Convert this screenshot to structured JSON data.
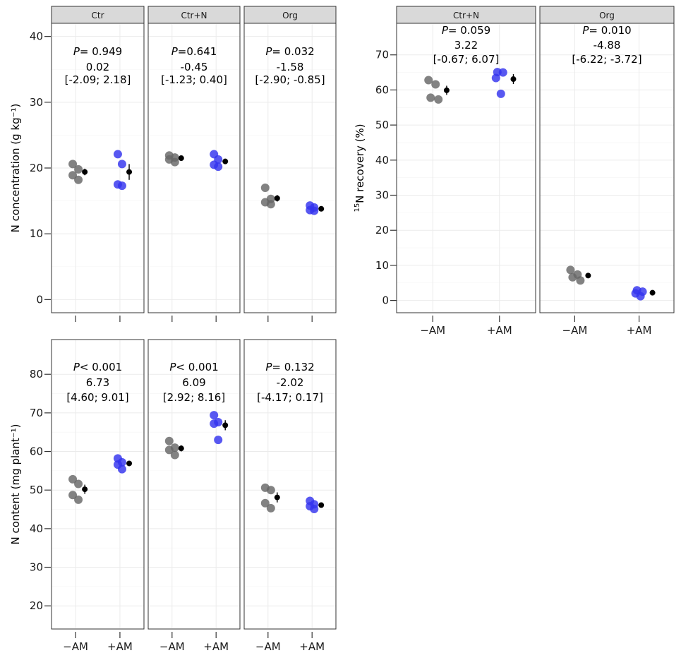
{
  "colors": {
    "minus_am": "#666666",
    "plus_am": "#3333ee",
    "mean": "#000000"
  },
  "chart_data": [
    {
      "type": "scatter",
      "ylabel": "N concentration (g kg⁻¹)",
      "ylim": [
        -2,
        42
      ],
      "yticks": [
        0,
        10,
        20,
        30,
        40
      ],
      "x_categories": [
        "−AM",
        "+AM"
      ],
      "x_ticklabels_shown": false,
      "panels": [
        {
          "strip": "Ctr",
          "annotation": {
            "p_label": "P",
            "p_text": "= 0.949",
            "estimate": "0.02",
            "ci": "[-2.09; 2.18]"
          },
          "points": {
            "minus_am": [
              20.6,
              19.8,
              18.9,
              18.2
            ],
            "plus_am": [
              22.1,
              20.6,
              17.5,
              17.3
            ]
          },
          "means": {
            "minus_am": {
              "mean": 19.4,
              "se": 0.5
            },
            "plus_am": {
              "mean": 19.4,
              "se": 1.2
            }
          }
        },
        {
          "strip": "Ctr+N",
          "annotation": {
            "p_label": "P",
            "p_text": "=0.641",
            "estimate": "-0.45",
            "ci": "[-1.23; 0.40]"
          },
          "points": {
            "minus_am": [
              21.9,
              21.6,
              21.3,
              20.9
            ],
            "plus_am": [
              22.1,
              21.3,
              20.5,
              20.2
            ]
          },
          "means": {
            "minus_am": {
              "mean": 21.5,
              "se": 0.2
            },
            "plus_am": {
              "mean": 21.0,
              "se": 0.4
            }
          }
        },
        {
          "strip": "Org",
          "annotation": {
            "p_label": "P",
            "p_text": "= 0.032",
            "estimate": "-1.58",
            "ci": "[-2.90; -0.85]"
          },
          "points": {
            "minus_am": [
              17.0,
              15.3,
              14.8,
              14.5
            ],
            "plus_am": [
              14.3,
              14.0,
              13.6,
              13.5
            ]
          },
          "means": {
            "minus_am": {
              "mean": 15.4,
              "se": 0.5
            },
            "plus_am": {
              "mean": 13.8,
              "se": 0.2
            }
          }
        }
      ]
    },
    {
      "type": "scatter",
      "ylabel": "N content (mg  plant⁻¹)",
      "ylim": [
        14,
        89
      ],
      "yticks": [
        20,
        30,
        40,
        50,
        60,
        70,
        80
      ],
      "x_categories": [
        "−AM",
        "+AM"
      ],
      "panels": [
        {
          "strip": "",
          "annotation": {
            "p_label": "P",
            "p_text": "< 0.001",
            "estimate": "6.73",
            "ci": "[4.60; 9.01]"
          },
          "points": {
            "minus_am": [
              52.8,
              51.6,
              48.7,
              47.5
            ],
            "plus_am": [
              58.2,
              57.2,
              56.6,
              55.4
            ]
          },
          "means": {
            "minus_am": {
              "mean": 50.2,
              "se": 1.2
            },
            "plus_am": {
              "mean": 56.9,
              "se": 0.6
            }
          }
        },
        {
          "strip": "",
          "annotation": {
            "p_label": "P",
            "p_text": "< 0.001",
            "estimate": "6.09",
            "ci": "[2.92; 8.16]"
          },
          "points": {
            "minus_am": [
              62.7,
              61.0,
              60.4,
              59.1
            ],
            "plus_am": [
              69.4,
              67.6,
              67.2,
              63.0
            ]
          },
          "means": {
            "minus_am": {
              "mean": 60.8,
              "se": 0.8
            },
            "plus_am": {
              "mean": 66.8,
              "se": 1.3
            }
          }
        },
        {
          "strip": "",
          "annotation": {
            "p_label": "P",
            "p_text": "= 0.132",
            "estimate": "-2.02",
            "ci": "[-4.17; 0.17]"
          },
          "points": {
            "minus_am": [
              50.6,
              50.0,
              46.6,
              45.3
            ],
            "plus_am": [
              47.2,
              46.3,
              45.8,
              45.1
            ]
          },
          "means": {
            "minus_am": {
              "mean": 48.1,
              "se": 1.3
            },
            "plus_am": {
              "mean": 46.1,
              "se": 0.5
            }
          }
        }
      ]
    },
    {
      "type": "scatter",
      "ylabel_sup": "15",
      "ylabel": "N recovery (%)",
      "ylim": [
        -3.5,
        79
      ],
      "yticks": [
        0,
        10,
        20,
        30,
        40,
        50,
        60,
        70
      ],
      "x_categories": [
        "−AM",
        "+AM"
      ],
      "panels": [
        {
          "strip": "Ctr+N",
          "annotation": {
            "p_label": "P",
            "p_text": "= 0.059",
            "estimate": "3.22",
            "ci": "[-0.67; 6.07]"
          },
          "points": {
            "minus_am": [
              62.8,
              61.6,
              57.8,
              57.3
            ],
            "plus_am": [
              65.1,
              65.0,
              63.4,
              58.9
            ]
          },
          "means": {
            "minus_am": {
              "mean": 59.9,
              "se": 1.3
            },
            "plus_am": {
              "mean": 63.1,
              "se": 1.4
            }
          }
        },
        {
          "strip": "Org",
          "annotation": {
            "p_label": "P",
            "p_text": "= 0.010",
            "estimate": "-4.88",
            "ci": "[-6.22; -3.72]"
          },
          "points": {
            "minus_am": [
              8.7,
              7.4,
              6.6,
              5.7
            ],
            "plus_am": [
              2.9,
              2.5,
              2.0,
              1.2
            ]
          },
          "means": {
            "minus_am": {
              "mean": 7.1,
              "se": 0.6
            },
            "plus_am": {
              "mean": 2.2,
              "se": 0.4
            }
          }
        }
      ]
    }
  ]
}
